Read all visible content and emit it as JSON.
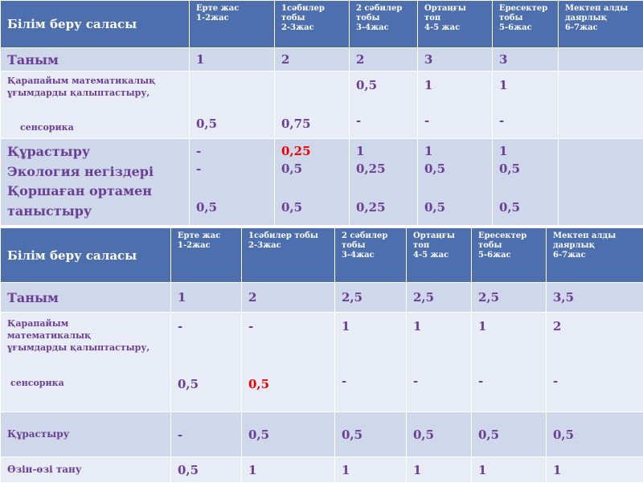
{
  "table1": {
    "header": [
      "Білім беру саласы",
      "Ерте жас\n1-2жас",
      "1сәбилер\nтобы\n2-3жас",
      "2 сәбилер\nтобы\n3-4жас",
      "Ортаңғы\nтоп\n4-5 жас",
      "Ересектер\nтобы\n5-6жас",
      "Мектеп алды\nдаярлық\n6-7жас"
    ],
    "tanym": {
      "label": "Таным",
      "values": [
        "1",
        "2",
        "2",
        "3",
        "3",
        ""
      ]
    },
    "math": {
      "label": "Қарапайым математикалық\nұғымдарды қалыптастыру,",
      "sublabel": "сенсорика",
      "c2": "0,5",
      "c3": "0,75",
      "c4_top": "0,5",
      "c4_bottom": "-",
      "c5_top": "1",
      "c5_bottom": "-",
      "c6_top": "1",
      "c6_bottom": "-"
    },
    "multi": {
      "labels": [
        "Құрастыру",
        "Экология негіздері",
        "Қоршаған ортамен",
        "таныстыру"
      ],
      "c2": [
        "-",
        "-",
        "0,5"
      ],
      "c3": [
        "0,25",
        "0,5",
        "0,5"
      ],
      "c4": [
        "1",
        "0,25",
        "0,25"
      ],
      "c5": [
        "1",
        "0,5",
        "0,5"
      ],
      "c6": [
        "1",
        "0,5",
        "0,5"
      ]
    }
  },
  "table2": {
    "header": [
      "Білім беру саласы",
      "Ерте жас\n1-2жас",
      "1сәбилер тобы\n2-3жас",
      "2 сәбилер\nтобы\n3-4жас",
      "Ортаңғы\nтоп\n4-5 жас",
      "Ересектер\nтобы\n5-6жас",
      "Мектеп алды\nдаярлық\n6-7жас"
    ],
    "tanym": {
      "label": "Таным",
      "values": [
        "1",
        "2",
        "2,5",
        "2,5",
        "2,5",
        "3,5"
      ]
    },
    "math": {
      "label": "Қарапайым\nматематикалық\nұғымдарды қалыптастыру,",
      "sublabel": "сенсорика",
      "top": [
        "-",
        "-",
        "1",
        "1",
        "1",
        "2"
      ],
      "bottom": [
        "0,5",
        "0,5",
        "-",
        "-",
        "-",
        "-"
      ]
    },
    "qurastyru": {
      "label": "Құрастыру",
      "values": [
        "-",
        "0,5",
        "0,5",
        "0,5",
        "0,5",
        "0,5"
      ]
    },
    "ozin": {
      "label": "Өзін-өзі тану",
      "values": [
        "0,5",
        "1",
        "1",
        "1",
        "1",
        "1"
      ]
    }
  },
  "colors": {
    "header_bg": "#4d6fae",
    "row_dark": "#cfd7ea",
    "row_light": "#e8ecf6",
    "text_purple": "#6a3f96",
    "text_red": "#ee0000"
  }
}
